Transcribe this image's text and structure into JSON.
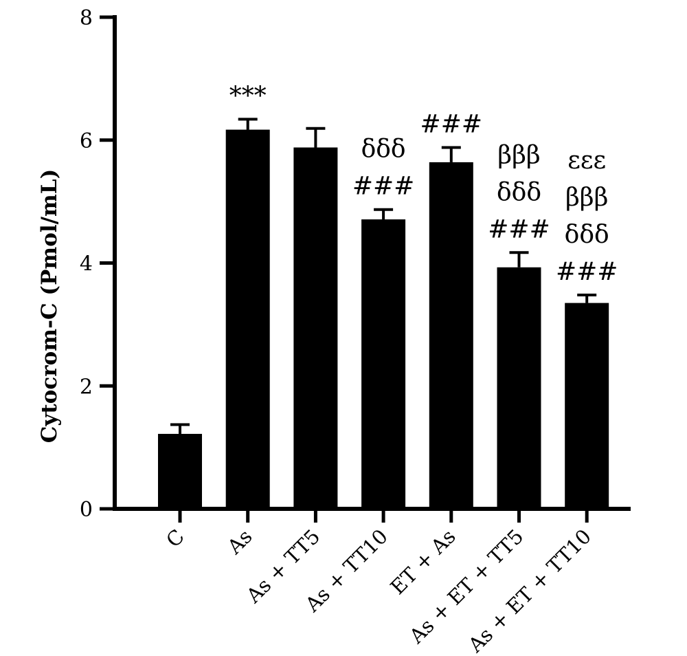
{
  "chart_data": {
    "type": "bar",
    "title": "",
    "xlabel": "",
    "ylabel": "Cytocrom-C (Pmol/mL)",
    "ylim": [
      0,
      8
    ],
    "yticks": [
      "0",
      "2",
      "4",
      "6",
      "8"
    ],
    "categories": [
      "C",
      "As",
      "As + TT5",
      "As + TT10",
      "ET + As",
      "As + ET + TT5",
      "As + ET + TT10"
    ],
    "values": [
      1.22,
      6.17,
      5.88,
      4.71,
      5.64,
      3.93,
      3.35
    ],
    "errors": [
      0.15,
      0.17,
      0.31,
      0.16,
      0.24,
      0.24,
      0.13
    ],
    "significance": [
      [],
      [
        "***"
      ],
      [],
      [
        "δδδ",
        "###"
      ],
      [
        "###"
      ],
      [
        "βββ",
        "δδδ",
        "###"
      ],
      [
        "εεε",
        "βββ",
        "δδδ",
        "###"
      ]
    ],
    "bar_color": "#000000",
    "grid": false,
    "legend": "none"
  }
}
